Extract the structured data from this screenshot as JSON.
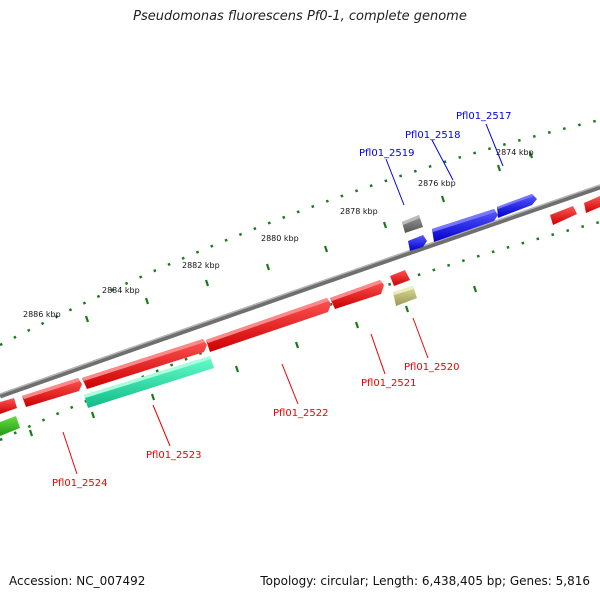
{
  "title": "Pseudomonas fluorescens Pf0-1, complete genome",
  "accession": "Accession: NC_007492",
  "summary": "Topology: circular; Length: 6,438,405 bp; Genes: 5,816",
  "ticks": [
    {
      "label": "2874 kbp"
    },
    {
      "label": "2876 kbp"
    },
    {
      "label": "2878 kbp"
    },
    {
      "label": "2880 kbp"
    },
    {
      "label": "2882 kbp"
    },
    {
      "label": "2884 kbp"
    },
    {
      "label": "2886 kbp"
    }
  ],
  "colors": {
    "forward_gene": "#0000ee",
    "reverse_gene": "#ee0000",
    "backbone": "#888888",
    "tick": "#1a7a1a",
    "rna": "#33ddaa",
    "pseudo": "#bbbb77",
    "misc": "#777777"
  },
  "genes": [
    {
      "id": "Pfl01_2517",
      "strand": "forward"
    },
    {
      "id": "Pfl01_2518",
      "strand": "forward"
    },
    {
      "id": "Pfl01_2519",
      "strand": "forward"
    },
    {
      "id": "Pfl01_2520",
      "strand": "reverse"
    },
    {
      "id": "Pfl01_2521",
      "strand": "reverse"
    },
    {
      "id": "Pfl01_2522",
      "strand": "reverse"
    },
    {
      "id": "Pfl01_2523",
      "strand": "reverse"
    },
    {
      "id": "Pfl01_2524",
      "strand": "reverse"
    }
  ]
}
